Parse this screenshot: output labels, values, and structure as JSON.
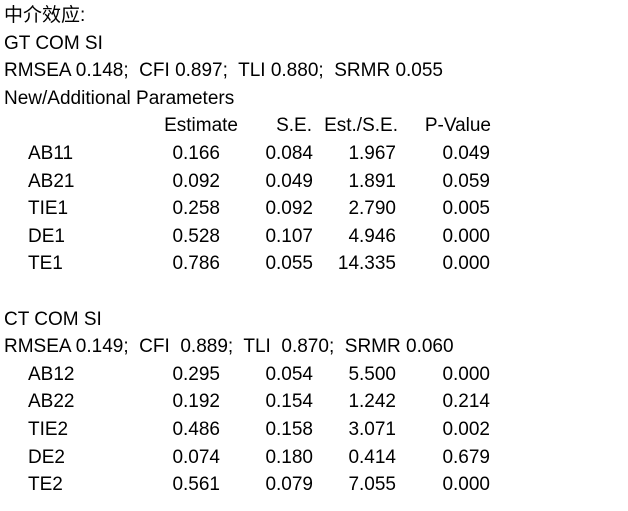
{
  "page": {
    "title": "中介效应:",
    "background_color": "#ffffff",
    "text_color": "#000000"
  },
  "table_columns": {
    "estimate": "Estimate",
    "se": "S.E.",
    "est_se": "Est./S.E.",
    "p_value": "P-Value"
  },
  "sections": [
    {
      "model": "GT COM SI",
      "fit_stats": "RMSEA 0.148;  CFI 0.897;  TLI 0.880;  SRMR 0.055",
      "subtitle": "New/Additional Parameters",
      "rows": [
        {
          "param": "AB11",
          "estimate": "0.166",
          "se": "0.084",
          "est_se": "1.967",
          "p_value": "0.049"
        },
        {
          "param": "AB21",
          "estimate": "0.092",
          "se": "0.049",
          "est_se": "1.891",
          "p_value": "0.059"
        },
        {
          "param": "TIE1",
          "estimate": "0.258",
          "se": "0.092",
          "est_se": "2.790",
          "p_value": "0.005"
        },
        {
          "param": "DE1",
          "estimate": "0.528",
          "se": "0.107",
          "est_se": "4.946",
          "p_value": "0.000"
        },
        {
          "param": "TE1",
          "estimate": "0.786",
          "se": "0.055",
          "est_se": "14.335",
          "p_value": "0.000"
        }
      ]
    },
    {
      "model": "CT COM SI",
      "fit_stats": "RMSEA 0.149;  CFI  0.889;  TLI  0.870;  SRMR 0.060",
      "rows": [
        {
          "param": "AB12",
          "estimate": "0.295",
          "se": "0.054",
          "est_se": "5.500",
          "p_value": "0.000"
        },
        {
          "param": "AB22",
          "estimate": "0.192",
          "se": "0.154",
          "est_se": "1.242",
          "p_value": "0.214"
        },
        {
          "param": "TIE2",
          "estimate": "0.486",
          "se": "0.158",
          "est_se": "3.071",
          "p_value": "0.002"
        },
        {
          "param": "DE2",
          "estimate": "0.074",
          "se": "0.180",
          "est_se": "0.414",
          "p_value": "0.679"
        },
        {
          "param": "TE2",
          "estimate": "0.561",
          "se": "0.079",
          "est_se": "7.055",
          "p_value": "0.000"
        }
      ]
    }
  ]
}
